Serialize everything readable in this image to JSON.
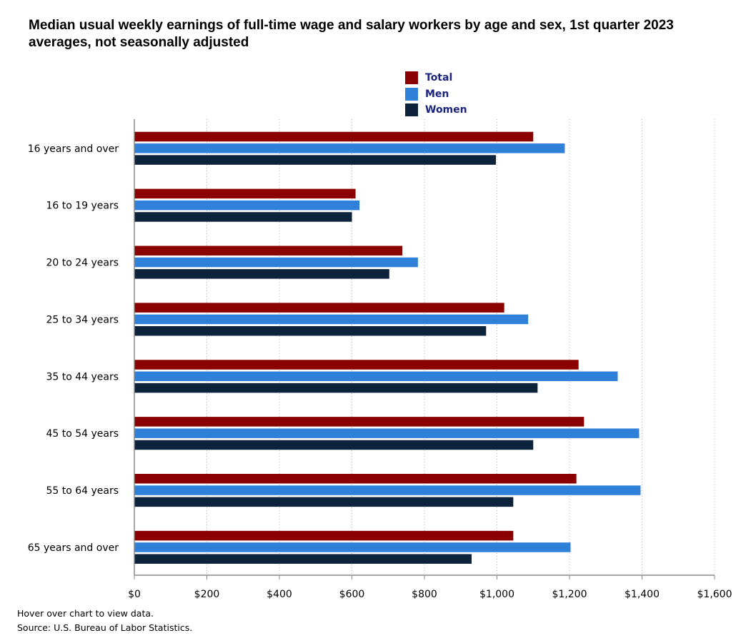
{
  "title": "Median usual weekly earnings of full-time wage and salary workers by age and sex, 1st quarter 2023 averages, not seasonally adjusted",
  "legend": [
    {
      "label": "Total",
      "color": "#8b0000"
    },
    {
      "label": "Men",
      "color": "#2f80d8"
    },
    {
      "label": "Women",
      "color": "#0d233b"
    }
  ],
  "footnotes": {
    "hover": "Hover over chart to view data.",
    "source": "Source: U.S. Bureau of Labor Statistics."
  },
  "chart_data": {
    "type": "bar",
    "orientation": "horizontal",
    "categories": [
      "16 years and over",
      "16 to 19 years",
      "20 to 24 years",
      "25 to 34 years",
      "35 to 44 years",
      "45 to 54 years",
      "55 to 64 years",
      "65 years and over"
    ],
    "series": [
      {
        "name": "Total",
        "color": "#8b0000",
        "values": [
          1100,
          610,
          739,
          1020,
          1225,
          1240,
          1219,
          1045
        ]
      },
      {
        "name": "Men",
        "color": "#2f80d8",
        "values": [
          1187,
          621,
          782,
          1086,
          1333,
          1392,
          1396,
          1203
        ]
      },
      {
        "name": "Women",
        "color": "#0d233b",
        "values": [
          997,
          600,
          703,
          970,
          1112,
          1100,
          1045,
          930
        ]
      }
    ],
    "x_ticks": [
      "$0",
      "$200",
      "$400",
      "$600",
      "$800",
      "$1,000",
      "$1,200",
      "$1,400",
      "$1,600"
    ],
    "xlim": [
      0,
      1600
    ],
    "grid": "vertical dotted",
    "legend_position": "top-center"
  }
}
